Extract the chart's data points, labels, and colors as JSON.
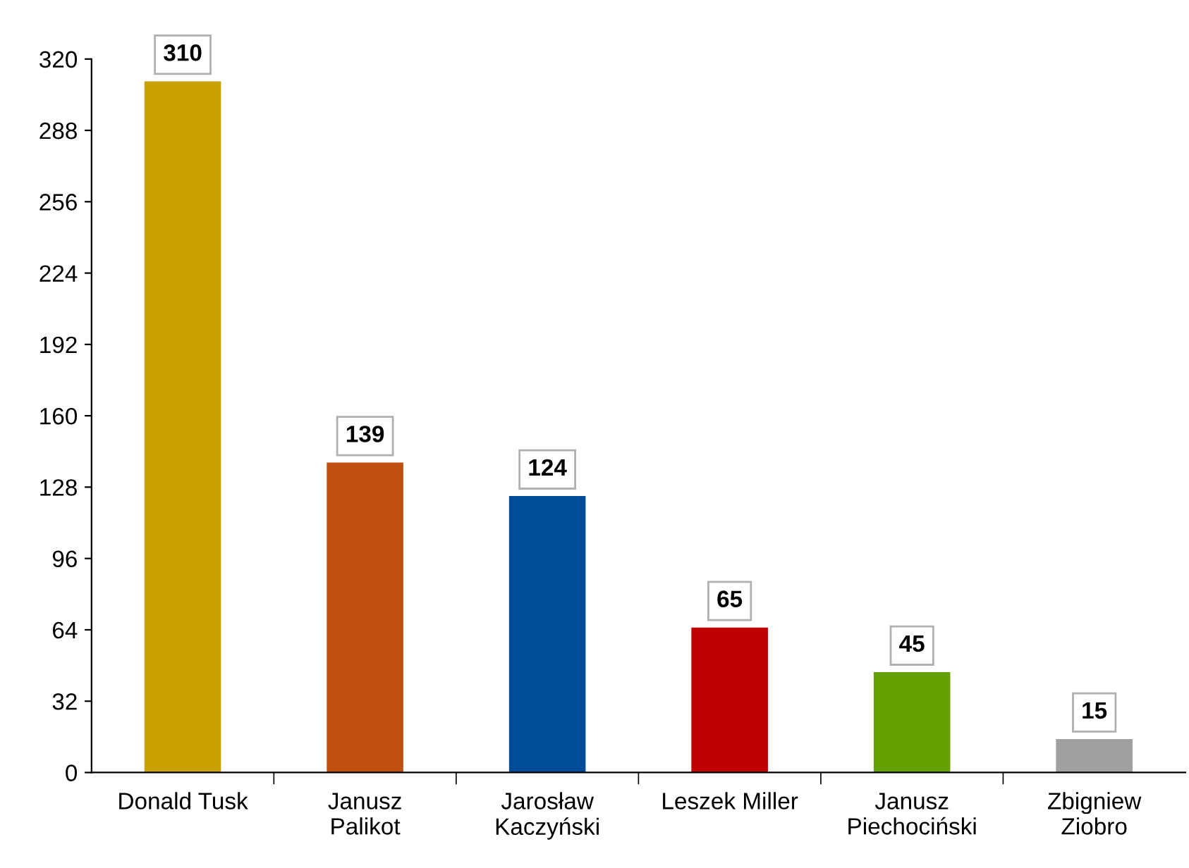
{
  "chart_data": {
    "type": "bar",
    "categories": [
      "Donald Tusk",
      "Janusz\nPalikot",
      "Jarosław\nKaczyński",
      "Leszek Miller",
      "Janusz\nPiechociński",
      "Zbigniew\nZiobro"
    ],
    "values": [
      310,
      139,
      124,
      65,
      45,
      15
    ],
    "colors": [
      "#c8a000",
      "#c05010",
      "#004c99",
      "#c00000",
      "#66a000",
      "#a0a0a0"
    ],
    "ylim": [
      0,
      320
    ],
    "yticks": [
      0,
      32,
      64,
      96,
      128,
      160,
      192,
      224,
      256,
      288,
      320
    ],
    "data_labels": true,
    "grid": false,
    "legend": false
  }
}
